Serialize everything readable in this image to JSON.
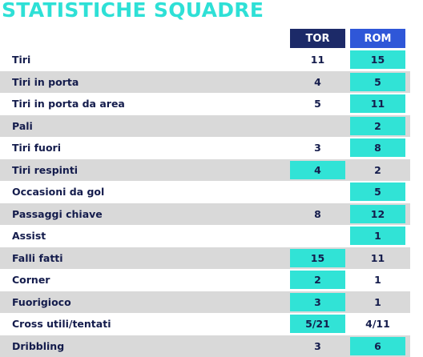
{
  "title": "STATISTICHE SQUADRE",
  "teams": {
    "home": "TOR",
    "away": "ROM"
  },
  "colors": {
    "title": "#2ee0d6",
    "home_header": "#1c2a68",
    "away_header": "#2f57d8",
    "highlight": "#31e3d6",
    "row_alt": "#d9d9d9",
    "text": "#141c4c"
  },
  "rows": [
    {
      "label": "Tiri",
      "tor": "11",
      "rom": "15",
      "leader": "rom"
    },
    {
      "label": "Tiri in porta",
      "tor": "4",
      "rom": "5",
      "leader": "rom"
    },
    {
      "label": "Tiri in porta da area",
      "tor": "5",
      "rom": "11",
      "leader": "rom"
    },
    {
      "label": "Pali",
      "tor": "",
      "rom": "2",
      "leader": "rom"
    },
    {
      "label": "Tiri fuori",
      "tor": "3",
      "rom": "8",
      "leader": "rom"
    },
    {
      "label": "Tiri respinti",
      "tor": "4",
      "rom": "2",
      "leader": "tor"
    },
    {
      "label": "Occasioni da gol",
      "tor": "",
      "rom": "5",
      "leader": "rom"
    },
    {
      "label": "Passaggi chiave",
      "tor": "8",
      "rom": "12",
      "leader": "rom"
    },
    {
      "label": "Assist",
      "tor": "",
      "rom": "1",
      "leader": "rom"
    },
    {
      "label": "Falli fatti",
      "tor": "15",
      "rom": "11",
      "leader": "tor"
    },
    {
      "label": "Corner",
      "tor": "2",
      "rom": "1",
      "leader": "tor"
    },
    {
      "label": "Fuorigioco",
      "tor": "3",
      "rom": "1",
      "leader": "tor"
    },
    {
      "label": "Cross utili/tentati",
      "tor": "5/21",
      "rom": "4/11",
      "leader": "tor"
    },
    {
      "label": "Dribbling",
      "tor": "3",
      "rom": "6",
      "leader": "rom"
    }
  ]
}
